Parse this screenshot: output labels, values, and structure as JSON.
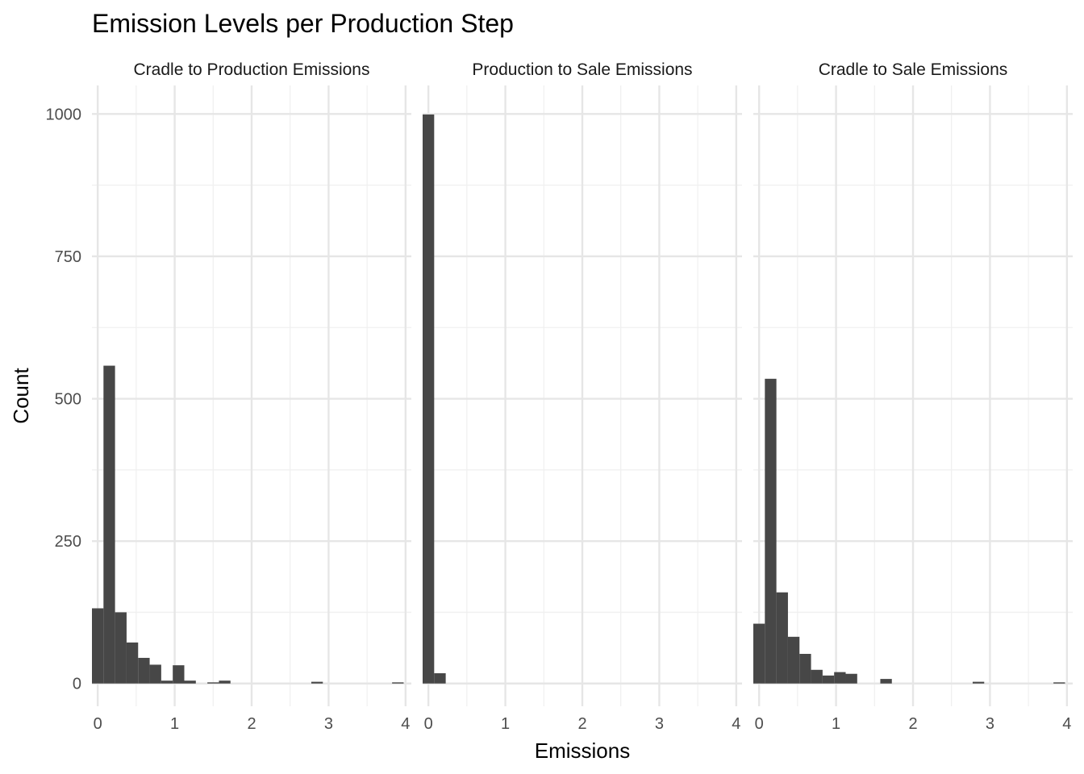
{
  "chart_data": {
    "type": "bar",
    "title": "Emission Levels per Production Step",
    "xlabel": "Emissions",
    "ylabel": "Count",
    "xlim": [
      -0.075,
      4.075
    ],
    "ylim": [
      -40,
      1050
    ],
    "x_ticks": [
      0,
      1,
      2,
      3,
      4
    ],
    "x_tick_labels": [
      "0",
      "1",
      "2",
      "3",
      "4"
    ],
    "y_ticks": [
      0,
      250,
      500,
      750,
      1000
    ],
    "y_tick_labels": [
      "0",
      "250",
      "500",
      "750",
      "1000"
    ],
    "bin_width": 0.15,
    "grid": true,
    "bar_color": "#474747",
    "panels": [
      {
        "name": "Cradle to Production Emissions",
        "bins": [
          {
            "x": 0.0,
            "count": 132
          },
          {
            "x": 0.15,
            "count": 558
          },
          {
            "x": 0.3,
            "count": 125
          },
          {
            "x": 0.45,
            "count": 72
          },
          {
            "x": 0.6,
            "count": 45
          },
          {
            "x": 0.75,
            "count": 33
          },
          {
            "x": 0.9,
            "count": 5
          },
          {
            "x": 1.05,
            "count": 32
          },
          {
            "x": 1.2,
            "count": 5
          },
          {
            "x": 1.5,
            "count": 2
          },
          {
            "x": 1.65,
            "count": 5
          },
          {
            "x": 2.85,
            "count": 3
          },
          {
            "x": 3.9,
            "count": 2
          }
        ]
      },
      {
        "name": "Production to Sale Emissions",
        "bins": [
          {
            "x": 0.0,
            "count": 999
          },
          {
            "x": 0.15,
            "count": 18
          }
        ]
      },
      {
        "name": "Cradle to Sale Emissions",
        "bins": [
          {
            "x": -0.075,
            "count": 105,
            "w": 0.15
          },
          {
            "x": 0.075,
            "count": 535,
            "w": 0.15
          },
          {
            "x": 0.225,
            "count": 160,
            "w": 0.15
          },
          {
            "x": 0.375,
            "count": 82,
            "w": 0.15
          },
          {
            "x": 0.525,
            "count": 52,
            "w": 0.15
          },
          {
            "x": 0.675,
            "count": 24,
            "w": 0.15
          },
          {
            "x": 0.825,
            "count": 14,
            "w": 0.15
          },
          {
            "x": 0.975,
            "count": 20,
            "w": 0.15
          },
          {
            "x": 1.125,
            "count": 17,
            "w": 0.15
          },
          {
            "x": 1.575,
            "count": 8,
            "w": 0.15
          },
          {
            "x": 2.775,
            "count": 3,
            "w": 0.15
          },
          {
            "x": 3.825,
            "count": 2,
            "w": 0.15
          }
        ]
      }
    ]
  }
}
